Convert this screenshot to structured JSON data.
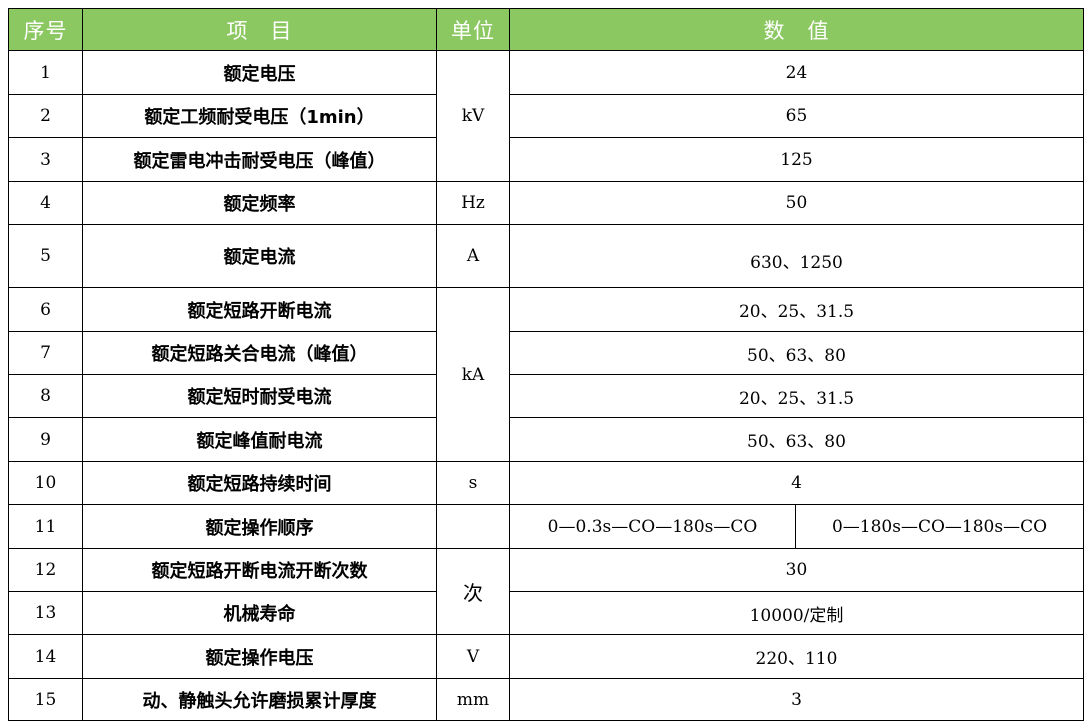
{
  "header": {
    "no": "序号",
    "item": "项　目",
    "unit": "单位",
    "value": "数　值"
  },
  "header_color": "#8cc862",
  "rows": [
    {
      "no": "1",
      "item": "额定电压",
      "unit": "kV",
      "value": "24"
    },
    {
      "no": "2",
      "item": "额定工频耐受电压（1min）",
      "value": "65"
    },
    {
      "no": "3",
      "item": "额定雷电冲击耐受电压（峰值）",
      "value": "125"
    },
    {
      "no": "4",
      "item": "额定频率",
      "unit": "Hz",
      "value": "50"
    },
    {
      "no": "5",
      "item": "额定电流",
      "unit": "A",
      "value": "630、1250"
    },
    {
      "no": "6",
      "item": "额定短路开断电流",
      "unit": "kA",
      "value": "20、25、31.5"
    },
    {
      "no": "7",
      "item": "额定短路关合电流（峰值）",
      "value": "50、63、80"
    },
    {
      "no": "8",
      "item": "额定短时耐受电流",
      "value": "20、25、31.5"
    },
    {
      "no": "9",
      "item": "额定峰值耐电流",
      "value": "50、63、80"
    },
    {
      "no": "10",
      "item": "额定短路持续时间",
      "unit": "s",
      "value": "4"
    },
    {
      "no": "11",
      "item": "额定操作顺序",
      "unit": "",
      "value_a": "0—0.3s—CO—180s—CO",
      "value_b": "0—180s—CO—180s—CO"
    },
    {
      "no": "12",
      "item": "额定短路开断电流开断次数",
      "unit": "次",
      "value": "30"
    },
    {
      "no": "13",
      "item": "机械寿命",
      "value": "10000/定制"
    },
    {
      "no": "14",
      "item": "额定操作电压",
      "unit": "V",
      "value": "220、110"
    },
    {
      "no": "15",
      "item": "动、静触头允许磨损累计厚度",
      "unit": "mm",
      "value": "3"
    }
  ]
}
